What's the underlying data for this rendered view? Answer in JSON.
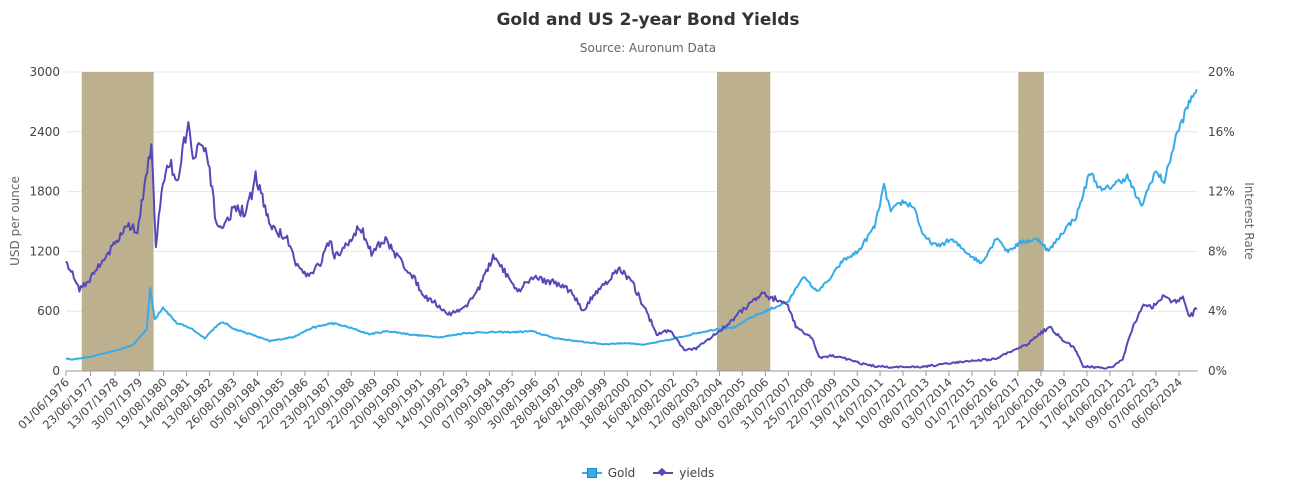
{
  "chart_data": {
    "type": "line",
    "title": "Gold and US 2-year Bond Yields",
    "subtitle": "Source: Auronum Data",
    "y_left_label": "USD per ounce",
    "y_right_label": "Interest Rate",
    "y_left_range": [
      0,
      3000
    ],
    "y_left_ticks": [
      "0",
      "600",
      "1200",
      "1800",
      "2400",
      "3000"
    ],
    "y_right_range": [
      0,
      20
    ],
    "y_right_ticks": [
      "0%",
      "4%",
      "8%",
      "12%",
      "16%",
      "20%"
    ],
    "x_range": [
      1976.42,
      2025.25
    ],
    "x_tick_labels": [
      "01/06/1976",
      "23/06/1977",
      "13/07/1978",
      "30/07/1979",
      "19/08/1980",
      "14/08/1981",
      "13/08/1982",
      "26/08/1983",
      "05/09/1984",
      "16/09/1985",
      "22/09/1986",
      "23/09/1987",
      "22/09/1988",
      "22/09/1989",
      "20/09/1990",
      "18/09/1991",
      "14/09/1992",
      "10/09/1993",
      "07/09/1994",
      "30/08/1995",
      "30/08/1996",
      "28/08/1997",
      "26/08/1998",
      "24/08/1999",
      "18/08/2000",
      "16/08/2001",
      "14/08/2002",
      "12/08/2003",
      "09/08/2004",
      "04/08/2005",
      "02/08/2006",
      "31/07/2007",
      "25/07/2008",
      "22/07/2009",
      "19/07/2010",
      "14/07/2011",
      "10/07/2012",
      "08/07/2013",
      "03/07/2014",
      "01/07/2015",
      "27/06/2016",
      "23/06/2017",
      "22/06/2018",
      "21/06/2019",
      "17/06/2020",
      "14/06/2021",
      "09/06/2022",
      "07/06/2023",
      "06/06/2024"
    ],
    "grid": true,
    "legend_position": "bottom-center",
    "shaded_periods": [
      [
        1977.1,
        1980.2
      ],
      [
        2004.5,
        2006.8
      ],
      [
        2017.5,
        2018.6
      ]
    ],
    "series": [
      {
        "name": "Gold",
        "axis": "left",
        "color": "#35ace8",
        "points": [
          [
            1976.42,
            125
          ],
          [
            1976.7,
            115
          ],
          [
            1977.5,
            145
          ],
          [
            1978.5,
            200
          ],
          [
            1979.3,
            260
          ],
          [
            1979.9,
            420
          ],
          [
            1980.05,
            820
          ],
          [
            1980.25,
            520
          ],
          [
            1980.6,
            640
          ],
          [
            1981.2,
            480
          ],
          [
            1981.8,
            430
          ],
          [
            1982.4,
            330
          ],
          [
            1982.9,
            450
          ],
          [
            1983.2,
            490
          ],
          [
            1983.7,
            420
          ],
          [
            1984.5,
            360
          ],
          [
            1985.2,
            300
          ],
          [
            1986.2,
            340
          ],
          [
            1987.0,
            430
          ],
          [
            1987.9,
            480
          ],
          [
            1988.6,
            440
          ],
          [
            1989.5,
            370
          ],
          [
            1990.3,
            400
          ],
          [
            1991.5,
            360
          ],
          [
            1992.6,
            340
          ],
          [
            1993.6,
            380
          ],
          [
            1994.7,
            390
          ],
          [
            1995.8,
            390
          ],
          [
            1996.5,
            400
          ],
          [
            1997.5,
            330
          ],
          [
            1998.6,
            295
          ],
          [
            1999.6,
            270
          ],
          [
            2000.6,
            280
          ],
          [
            2001.4,
            265
          ],
          [
            2002.6,
            320
          ],
          [
            2003.6,
            380
          ],
          [
            2004.5,
            420
          ],
          [
            2005.3,
            440
          ],
          [
            2006.0,
            540
          ],
          [
            2006.8,
            620
          ],
          [
            2007.6,
            700
          ],
          [
            2008.2,
            950
          ],
          [
            2008.8,
            800
          ],
          [
            2009.3,
            900
          ],
          [
            2009.9,
            1100
          ],
          [
            2010.6,
            1200
          ],
          [
            2011.3,
            1450
          ],
          [
            2011.7,
            1850
          ],
          [
            2012.0,
            1600
          ],
          [
            2012.5,
            1700
          ],
          [
            2013.0,
            1650
          ],
          [
            2013.4,
            1350
          ],
          [
            2014.0,
            1250
          ],
          [
            2014.6,
            1320
          ],
          [
            2015.5,
            1150
          ],
          [
            2015.9,
            1080
          ],
          [
            2016.6,
            1350
          ],
          [
            2017.0,
            1200
          ],
          [
            2017.7,
            1300
          ],
          [
            2018.4,
            1320
          ],
          [
            2018.8,
            1200
          ],
          [
            2019.5,
            1420
          ],
          [
            2020.0,
            1550
          ],
          [
            2020.6,
            2000
          ],
          [
            2021.1,
            1800
          ],
          [
            2022.2,
            1950
          ],
          [
            2022.8,
            1650
          ],
          [
            2023.4,
            2000
          ],
          [
            2023.8,
            1900
          ],
          [
            2024.3,
            2350
          ],
          [
            2024.8,
            2650
          ],
          [
            2025.2,
            2850
          ]
        ]
      },
      {
        "name": "yields",
        "axis": "right",
        "color": "#5548b8",
        "points": [
          [
            1976.42,
            7.2
          ],
          [
            1976.7,
            6.5
          ],
          [
            1977.0,
            5.5
          ],
          [
            1977.5,
            6.2
          ],
          [
            1978.0,
            7.5
          ],
          [
            1978.6,
            8.6
          ],
          [
            1979.0,
            9.8
          ],
          [
            1979.5,
            9.3
          ],
          [
            1979.8,
            12.5
          ],
          [
            1980.1,
            15.2
          ],
          [
            1980.3,
            8.5
          ],
          [
            1980.6,
            12.5
          ],
          [
            1980.9,
            14.0
          ],
          [
            1981.2,
            12.5
          ],
          [
            1981.7,
            16.8
          ],
          [
            1981.9,
            14.0
          ],
          [
            1982.2,
            15.0
          ],
          [
            1982.5,
            14.5
          ],
          [
            1982.9,
            10.0
          ],
          [
            1983.2,
            9.5
          ],
          [
            1983.7,
            11.0
          ],
          [
            1984.2,
            10.5
          ],
          [
            1984.6,
            13.0
          ],
          [
            1985.3,
            9.5
          ],
          [
            1985.9,
            9.0
          ],
          [
            1986.4,
            7.0
          ],
          [
            1986.9,
            6.3
          ],
          [
            1987.4,
            7.2
          ],
          [
            1987.8,
            8.8
          ],
          [
            1988.0,
            7.5
          ],
          [
            1988.6,
            8.5
          ],
          [
            1989.1,
            9.7
          ],
          [
            1989.6,
            8.0
          ],
          [
            1990.2,
            8.7
          ],
          [
            1990.8,
            7.5
          ],
          [
            1991.3,
            6.5
          ],
          [
            1991.9,
            5.0
          ],
          [
            1992.4,
            4.5
          ],
          [
            1992.9,
            3.8
          ],
          [
            1993.6,
            4.2
          ],
          [
            1994.2,
            5.5
          ],
          [
            1994.9,
            7.7
          ],
          [
            1995.4,
            6.5
          ],
          [
            1995.9,
            5.2
          ],
          [
            1996.5,
            6.3
          ],
          [
            1997.3,
            6.0
          ],
          [
            1998.2,
            5.4
          ],
          [
            1998.7,
            4.0
          ],
          [
            1999.4,
            5.5
          ],
          [
            2000.3,
            6.8
          ],
          [
            2000.8,
            6.0
          ],
          [
            2001.3,
            4.5
          ],
          [
            2001.9,
            2.5
          ],
          [
            2002.5,
            2.7
          ],
          [
            2003.1,
            1.4
          ],
          [
            2003.6,
            1.5
          ],
          [
            2004.3,
            2.3
          ],
          [
            2004.9,
            3.0
          ],
          [
            2005.4,
            3.8
          ],
          [
            2006.0,
            4.6
          ],
          [
            2006.5,
            5.1
          ],
          [
            2007.0,
            4.8
          ],
          [
            2007.5,
            4.6
          ],
          [
            2007.9,
            3.0
          ],
          [
            2008.6,
            2.2
          ],
          [
            2008.9,
            0.9
          ],
          [
            2009.5,
            1.0
          ],
          [
            2010.2,
            0.8
          ],
          [
            2010.7,
            0.5
          ],
          [
            2011.4,
            0.3
          ],
          [
            2012.5,
            0.25
          ],
          [
            2013.5,
            0.3
          ],
          [
            2014.5,
            0.5
          ],
          [
            2015.5,
            0.7
          ],
          [
            2016.5,
            0.8
          ],
          [
            2017.2,
            1.3
          ],
          [
            2017.9,
            1.8
          ],
          [
            2018.5,
            2.6
          ],
          [
            2018.9,
            2.9
          ],
          [
            2019.4,
            2.1
          ],
          [
            2019.9,
            1.6
          ],
          [
            2020.3,
            0.3
          ],
          [
            2021.5,
            0.2
          ],
          [
            2022.0,
            0.8
          ],
          [
            2022.4,
            2.8
          ],
          [
            2022.9,
            4.5
          ],
          [
            2023.3,
            4.2
          ],
          [
            2023.8,
            5.1
          ],
          [
            2024.2,
            4.6
          ],
          [
            2024.6,
            4.9
          ],
          [
            2024.9,
            3.6
          ],
          [
            2025.2,
            4.2
          ]
        ]
      }
    ]
  },
  "legend": {
    "gold_label": "Gold",
    "yields_label": "yields"
  }
}
